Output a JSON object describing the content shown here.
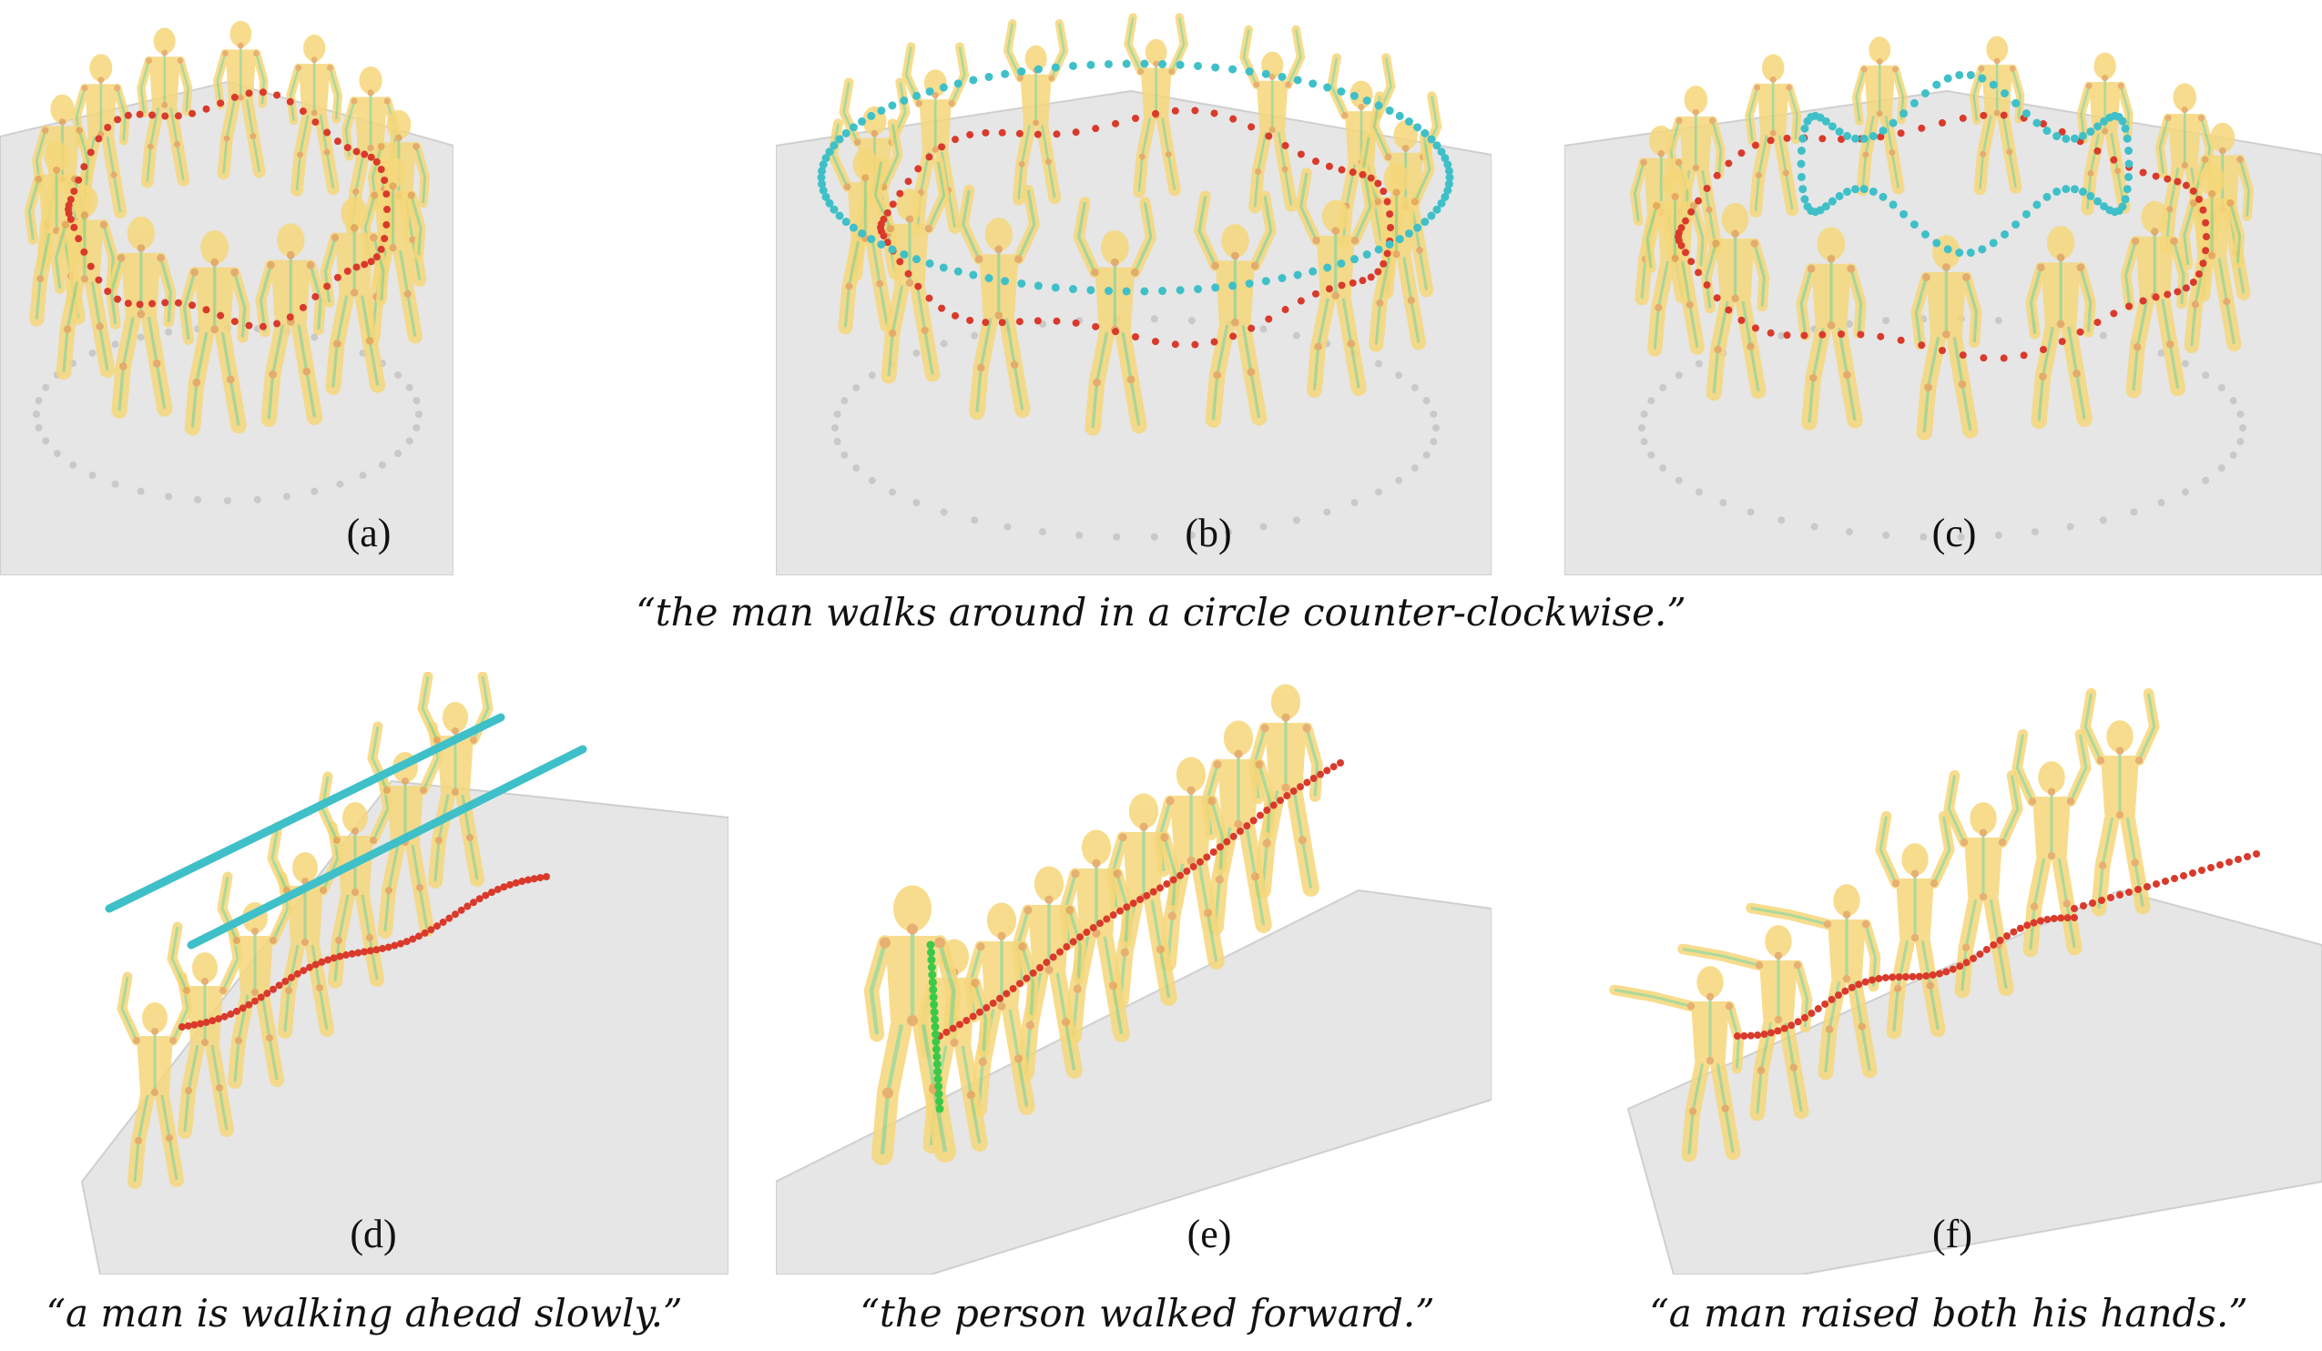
{
  "panels": [
    {
      "id": "a",
      "label": "(a)"
    },
    {
      "id": "b",
      "label": "(b)"
    },
    {
      "id": "c",
      "label": "(c)"
    },
    {
      "id": "d",
      "label": "(d)"
    },
    {
      "id": "e",
      "label": "(e)"
    },
    {
      "id": "f",
      "label": "(f)"
    }
  ],
  "captions": {
    "top": "“the man walks around in a circle counter-clockwise.”",
    "d": "“a man is walking ahead slowly.”",
    "e": "“the person walked forward.”",
    "f": "“a man raised both his hands.”"
  },
  "colors": {
    "body": "#f6d77a",
    "skeleton": "#9fd38a",
    "joint": "#e2a35a",
    "pelvis_trail": "#d93a2b",
    "hand_trail": "#3fc0c8",
    "foot_trail": "#3bc94a",
    "floor": "#e6e6e6"
  }
}
